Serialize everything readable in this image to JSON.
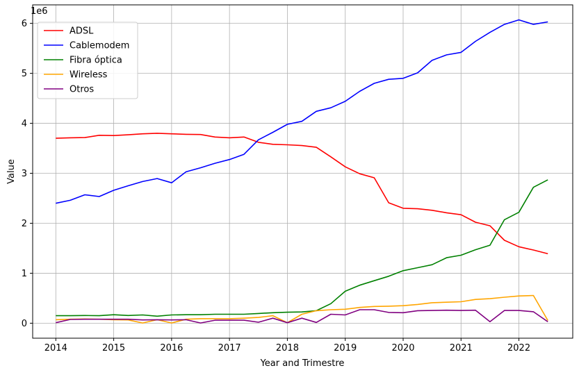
{
  "chart_data": {
    "type": "line",
    "title": "",
    "xlabel": "Year and Trimestre",
    "ylabel": "Value",
    "y_offset_label": "1e6",
    "xlim": [
      2013.6,
      2022.93
    ],
    "ylim": [
      -300000,
      6370000
    ],
    "x_ticks": [
      2014,
      2015,
      2016,
      2017,
      2018,
      2019,
      2020,
      2021,
      2022
    ],
    "y_ticks": [
      0,
      1000000,
      2000000,
      3000000,
      4000000,
      5000000,
      6000000
    ],
    "y_tick_labels": [
      "0",
      "1",
      "2",
      "3",
      "4",
      "5",
      "6"
    ],
    "grid": true,
    "legend_position": "top-left",
    "x": [
      2014,
      2014.25,
      2014.5,
      2014.75,
      2015,
      2015.25,
      2015.5,
      2015.75,
      2016,
      2016.25,
      2016.5,
      2016.75,
      2017,
      2017.25,
      2017.5,
      2017.75,
      2018,
      2018.25,
      2018.5,
      2018.75,
      2019,
      2019.25,
      2019.5,
      2019.75,
      2020,
      2020.25,
      2020.5,
      2020.75,
      2021,
      2021.25,
      2021.5,
      2021.75,
      2022,
      2022.25,
      2022.5
    ],
    "series": [
      {
        "name": "ADSL",
        "color": "#ff0000",
        "values": [
          3700000,
          3710000,
          3715000,
          3760000,
          3755000,
          3770000,
          3790000,
          3800000,
          3790000,
          3780000,
          3775000,
          3725000,
          3710000,
          3725000,
          3620000,
          3580000,
          3570000,
          3555000,
          3520000,
          3330000,
          3130000,
          2990000,
          2910000,
          2410000,
          2300000,
          2290000,
          2260000,
          2210000,
          2170000,
          2020000,
          1950000,
          1660000,
          1530000,
          1465000,
          1390000
        ]
      },
      {
        "name": "Cablemodem",
        "color": "#0000ff",
        "values": [
          2400000,
          2460000,
          2570000,
          2535000,
          2660000,
          2750000,
          2835000,
          2895000,
          2810000,
          3030000,
          3110000,
          3200000,
          3275000,
          3380000,
          3670000,
          3820000,
          3980000,
          4040000,
          4240000,
          4310000,
          4440000,
          4640000,
          4800000,
          4880000,
          4900000,
          5010000,
          5260000,
          5370000,
          5420000,
          5640000,
          5820000,
          5980000,
          6070000,
          5980000,
          6030000
        ]
      },
      {
        "name": "Fibra óptica",
        "color": "#008000",
        "values": [
          150000,
          150000,
          155000,
          150000,
          170000,
          155000,
          165000,
          140000,
          165000,
          170000,
          170000,
          180000,
          180000,
          180000,
          195000,
          210000,
          220000,
          225000,
          250000,
          390000,
          640000,
          760000,
          850000,
          940000,
          1050000,
          1110000,
          1170000,
          1310000,
          1360000,
          1470000,
          1560000,
          2070000,
          2220000,
          2720000,
          2870000
        ]
      },
      {
        "name": "Wireless",
        "color": "#ffa500",
        "values": [
          70000,
          80000,
          85000,
          80000,
          70000,
          65000,
          5000,
          70000,
          5000,
          80000,
          90000,
          90000,
          90000,
          100000,
          115000,
          150000,
          10000,
          180000,
          250000,
          270000,
          280000,
          315000,
          335000,
          340000,
          350000,
          375000,
          410000,
          420000,
          430000,
          475000,
          490000,
          520000,
          545000,
          555000,
          55000
        ]
      },
      {
        "name": "Otros",
        "color": "#800080",
        "values": [
          10000,
          75000,
          80000,
          80000,
          80000,
          80000,
          65000,
          70000,
          65000,
          70000,
          5000,
          60000,
          60000,
          60000,
          20000,
          100000,
          10000,
          100000,
          15000,
          180000,
          165000,
          270000,
          270000,
          215000,
          210000,
          250000,
          255000,
          260000,
          255000,
          260000,
          30000,
          255000,
          255000,
          230000,
          30000
        ]
      }
    ]
  }
}
